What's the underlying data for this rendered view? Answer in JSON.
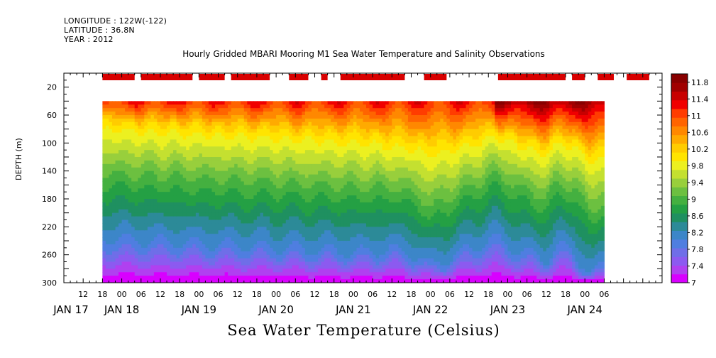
{
  "header": {
    "longitude": "LONGITUDE : 122W(-122)",
    "latitude": "LATITUDE : 36.8N",
    "year": "YEAR : 2012"
  },
  "chart_data": {
    "type": "heatmap",
    "title": "Hourly Gridded MBARI Mooring M1 Sea Water Temperature and Salinity Observations",
    "subtitle": "Sea Water Temperature (Celsius)",
    "ylabel": "DEPTH (m)",
    "xlabel": "",
    "y_reversed": true,
    "ylim": [
      300,
      0
    ],
    "y_ticks": [
      20,
      60,
      100,
      140,
      180,
      220,
      260,
      300
    ],
    "data_depth_range": [
      40,
      300
    ],
    "x_hour_ticks": [
      "12",
      "18",
      "00",
      "06",
      "12",
      "18",
      "00",
      "06",
      "12",
      "18",
      "00",
      "06",
      "12",
      "18",
      "00",
      "06",
      "12",
      "18",
      "00",
      "06",
      "12",
      "18",
      "00",
      "06",
      "12",
      "18",
      "00",
      "06"
    ],
    "x_day_labels": [
      "JAN 17",
      "JAN 18",
      "JAN 19",
      "JAN 20",
      "JAN 21",
      "JAN 22",
      "JAN 23",
      "JAN 24"
    ],
    "data_time_range_hours_from_jan17_00": [
      18,
      174
    ],
    "colorbar": {
      "labels": [
        "11.8",
        "11.4",
        "11",
        "10.6",
        "10.2",
        "9.8",
        "9.4",
        "9",
        "8.6",
        "8.2",
        "7.8",
        "7.4",
        "7"
      ],
      "range": [
        7,
        12
      ],
      "colors": [
        "#d800ff",
        "#b040f0",
        "#8c5af0",
        "#6f6ee8",
        "#4f7ee0",
        "#3c86c8",
        "#2c8a98",
        "#1f9060",
        "#24a044",
        "#44b040",
        "#6cc040",
        "#98cf3c",
        "#c4e030",
        "#ecf020",
        "#ffe400",
        "#ffcc00",
        "#ffaa00",
        "#ff8800",
        "#ff6400",
        "#ff3c00",
        "#f00000",
        "#c80000",
        "#a00000",
        "#880000"
      ]
    },
    "surface_bars_hours_from_jan17_00": [
      [
        18,
        28
      ],
      [
        30,
        46
      ],
      [
        48,
        56
      ],
      [
        58,
        70
      ],
      [
        76,
        82
      ],
      [
        86,
        88
      ],
      [
        92,
        112
      ],
      [
        118,
        125
      ],
      [
        141,
        162
      ],
      [
        164,
        168
      ],
      [
        172,
        177
      ],
      [
        181,
        188
      ]
    ],
    "surface_bar_color": "#d80000",
    "depth_profile_nodes": {
      "hours": [
        18,
        40,
        60,
        80,
        100,
        108,
        116,
        120,
        132,
        140,
        148,
        156,
        160,
        164,
        170,
        176,
        190
      ],
      "isotherm_depth_10c": [
        75,
        80,
        85,
        90,
        95,
        100,
        105,
        110,
        100,
        85,
        100,
        110,
        95,
        100,
        120,
        115,
        105
      ],
      "isotherm_depth_9c": [
        150,
        155,
        160,
        165,
        170,
        170,
        180,
        200,
        170,
        150,
        170,
        185,
        160,
        170,
        200,
        190,
        180
      ],
      "isotherm_depth_8c": [
        240,
        245,
        250,
        255,
        260,
        255,
        265,
        280,
        255,
        240,
        260,
        270,
        250,
        260,
        290,
        275,
        265
      ]
    }
  }
}
